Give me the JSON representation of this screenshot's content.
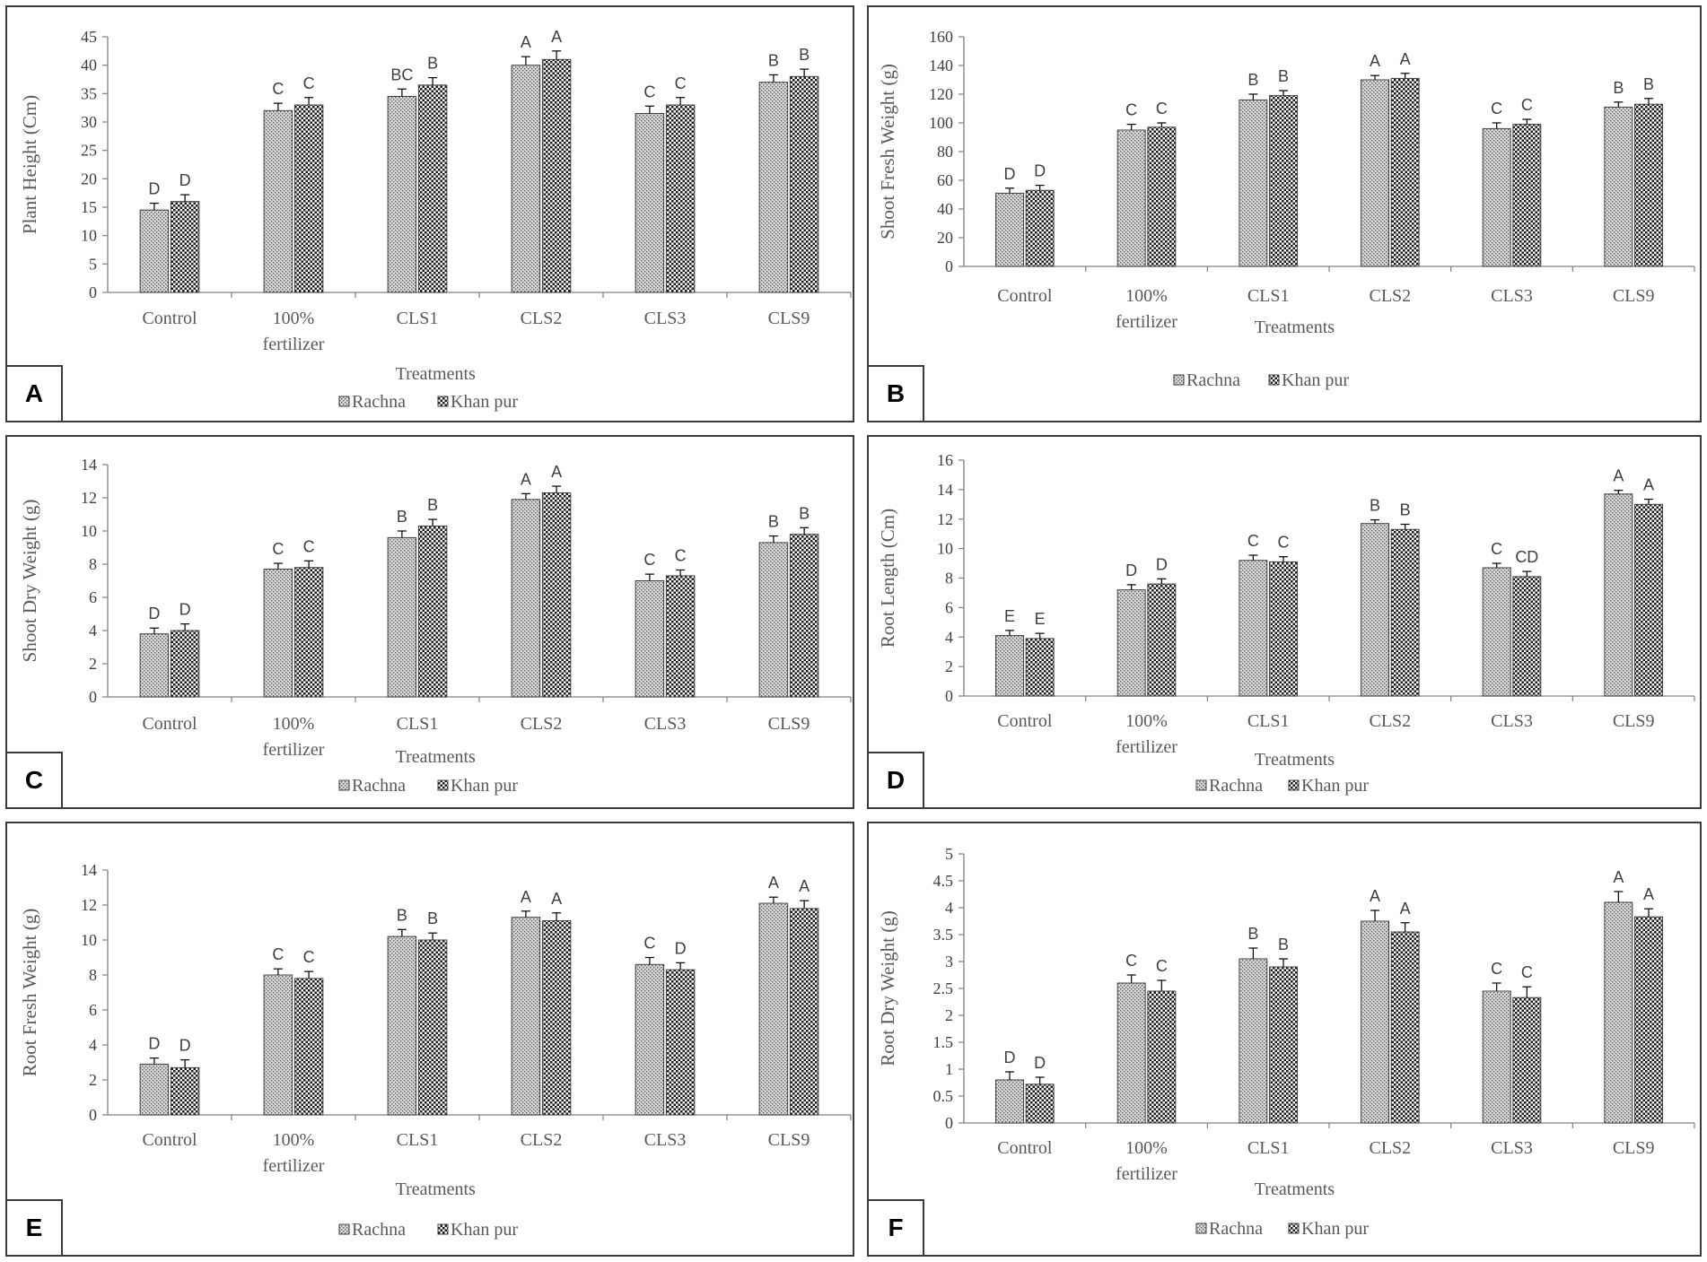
{
  "colors": {
    "bar_fill": "#d9d9d9",
    "pattern_dark": "#1a1a1a",
    "axis": "#808080",
    "text": "#595959",
    "border": "#3a3a3a"
  },
  "chart_data": [
    {
      "panel": "A",
      "type": "bar",
      "ylabel": "Plant Height (Cm)",
      "xlabel": "Treatments",
      "ylim": [
        0,
        45
      ],
      "ystep": 5,
      "categories": [
        "Control",
        "100% fertilizer",
        "CLS1",
        "CLS2",
        "CLS3",
        "CLS9"
      ],
      "series": [
        {
          "name": "Rachna",
          "values": [
            14.5,
            32,
            34.5,
            40,
            31.5,
            37
          ],
          "errors": [
            1.2,
            1.3,
            1.3,
            1.5,
            1.3,
            1.3
          ],
          "letters": [
            "D",
            "C",
            "BC",
            "A",
            "C",
            "B"
          ]
        },
        {
          "name": "Khan pur",
          "values": [
            16,
            33,
            36.5,
            41,
            33,
            38
          ],
          "errors": [
            1.2,
            1.3,
            1.3,
            1.5,
            1.3,
            1.3
          ],
          "letters": [
            "D",
            "C",
            "B",
            "A",
            "C",
            "B"
          ]
        }
      ]
    },
    {
      "panel": "B",
      "type": "bar",
      "ylabel": "Shoot Fresh Weight (g)",
      "xlabel": "Treatments",
      "ylim": [
        0,
        160
      ],
      "ystep": 20,
      "categories": [
        "Control",
        "100% fertilizer",
        "CLS1",
        "CLS2",
        "CLS3",
        "CLS9"
      ],
      "series": [
        {
          "name": "Rachna",
          "values": [
            51,
            95,
            116,
            130,
            96,
            111
          ],
          "errors": [
            3.5,
            4,
            4,
            3,
            4,
            3.5
          ],
          "letters": [
            "D",
            "C",
            "B",
            "A",
            "C",
            "B"
          ]
        },
        {
          "name": "Khan pur",
          "values": [
            53,
            97,
            119,
            131,
            99,
            113
          ],
          "errors": [
            3.5,
            3,
            3.5,
            3.5,
            3.5,
            4
          ],
          "letters": [
            "D",
            "C",
            "B",
            "A",
            "C",
            "B"
          ]
        }
      ]
    },
    {
      "panel": "C",
      "type": "bar",
      "ylabel": "Shoot Dry Weight (g)",
      "xlabel": "Treatments",
      "ylim": [
        0,
        14
      ],
      "ystep": 2,
      "categories": [
        "Control",
        "100% fertilizer",
        "CLS1",
        "CLS2",
        "CLS3",
        "CLS9"
      ],
      "series": [
        {
          "name": "Rachna",
          "values": [
            3.8,
            7.7,
            9.6,
            11.9,
            7.0,
            9.3
          ],
          "errors": [
            0.35,
            0.35,
            0.4,
            0.35,
            0.4,
            0.4
          ],
          "letters": [
            "D",
            "C",
            "B",
            "A",
            "C",
            "B"
          ]
        },
        {
          "name": "Khan pur",
          "values": [
            4.0,
            7.8,
            10.3,
            12.3,
            7.3,
            9.8
          ],
          "errors": [
            0.4,
            0.4,
            0.4,
            0.4,
            0.35,
            0.4
          ],
          "letters": [
            "D",
            "C",
            "B",
            "A",
            "C",
            "B"
          ]
        }
      ]
    },
    {
      "panel": "D",
      "type": "bar",
      "ylabel": "Root Length (Cm)",
      "xlabel": "Treatments",
      "ylim": [
        0,
        16
      ],
      "ystep": 2,
      "categories": [
        "Control",
        "100% fertilizer",
        "CLS1",
        "CLS2",
        "CLS3",
        "CLS9"
      ],
      "series": [
        {
          "name": "Rachna",
          "values": [
            4.1,
            7.2,
            9.2,
            11.7,
            8.7,
            13.7
          ],
          "errors": [
            0.35,
            0.35,
            0.35,
            0.25,
            0.3,
            0.25
          ],
          "letters": [
            "E",
            "D",
            "C",
            "B",
            "C",
            "A"
          ]
        },
        {
          "name": "Khan pur",
          "values": [
            3.9,
            7.6,
            9.1,
            11.3,
            8.1,
            13.0
          ],
          "errors": [
            0.35,
            0.35,
            0.35,
            0.35,
            0.35,
            0.35
          ],
          "letters": [
            "E",
            "D",
            "C",
            "B",
            "CD",
            "A"
          ]
        }
      ]
    },
    {
      "panel": "E",
      "type": "bar",
      "ylabel": "Root Fresh Weight (g)",
      "xlabel": "Treatments",
      "ylim": [
        0,
        14
      ],
      "ystep": 2,
      "categories": [
        "Control",
        "100% fertilizer",
        "CLS1",
        "CLS2",
        "CLS3",
        "CLS9"
      ],
      "series": [
        {
          "name": "Rachna",
          "values": [
            2.9,
            8.0,
            10.2,
            11.3,
            8.6,
            12.1
          ],
          "errors": [
            0.35,
            0.35,
            0.4,
            0.35,
            0.4,
            0.35
          ],
          "letters": [
            "D",
            "C",
            "B",
            "A",
            "C",
            "A"
          ]
        },
        {
          "name": "Khan pur",
          "values": [
            2.7,
            7.8,
            10.0,
            11.1,
            8.3,
            11.8
          ],
          "errors": [
            0.45,
            0.4,
            0.4,
            0.45,
            0.4,
            0.45
          ],
          "letters": [
            "D",
            "C",
            "B",
            "A",
            "D",
            "A"
          ]
        }
      ]
    },
    {
      "panel": "F",
      "type": "bar",
      "ylabel": "Root Dry Weight (g)",
      "xlabel": "Treatments",
      "ylim": [
        0,
        5
      ],
      "ystep": 0.5,
      "categories": [
        "Control",
        "100% fertilizer",
        "CLS1",
        "CLS2",
        "CLS3",
        "CLS9"
      ],
      "series": [
        {
          "name": "Rachna",
          "values": [
            0.8,
            2.6,
            3.05,
            3.75,
            2.45,
            4.1
          ],
          "errors": [
            0.15,
            0.15,
            0.2,
            0.2,
            0.15,
            0.2
          ],
          "letters": [
            "D",
            "C",
            "B",
            "A",
            "C",
            "A"
          ]
        },
        {
          "name": "Khan pur",
          "values": [
            0.72,
            2.45,
            2.9,
            3.55,
            2.33,
            3.83
          ],
          "errors": [
            0.13,
            0.2,
            0.15,
            0.17,
            0.2,
            0.15
          ],
          "letters": [
            "D",
            "C",
            "B",
            "A",
            "C",
            "A"
          ]
        }
      ]
    }
  ]
}
